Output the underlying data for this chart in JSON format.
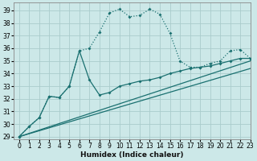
{
  "xlabel": "Humidex (Indice chaleur)",
  "bg_color": "#cce8e8",
  "grid_color": "#aacccc",
  "line_color": "#1a7070",
  "xlim": [
    -0.5,
    23
  ],
  "ylim": [
    28.8,
    39.6
  ],
  "yticks": [
    29,
    30,
    31,
    32,
    33,
    34,
    35,
    36,
    37,
    38,
    39
  ],
  "xticks": [
    0,
    1,
    2,
    3,
    4,
    5,
    6,
    7,
    8,
    9,
    10,
    11,
    12,
    13,
    14,
    15,
    16,
    17,
    18,
    19,
    20,
    21,
    22,
    23
  ],
  "series1_x": [
    0,
    1,
    2,
    3,
    4,
    5,
    6,
    7,
    8,
    9,
    10,
    11,
    12,
    13,
    14,
    15,
    16,
    17,
    18,
    19,
    20,
    21,
    22,
    23
  ],
  "series1_y": [
    29,
    29.8,
    30.5,
    32.2,
    32.1,
    33.0,
    35.8,
    36.0,
    37.3,
    38.8,
    39.1,
    38.5,
    38.6,
    39.1,
    38.7,
    37.2,
    35.0,
    34.5,
    34.5,
    34.8,
    35.0,
    35.8,
    35.9,
    35.2
  ],
  "series2_x": [
    0,
    1,
    2,
    3,
    4,
    5,
    6,
    7,
    8,
    9,
    10,
    11,
    12,
    13,
    14,
    15,
    16,
    17,
    18,
    19,
    20,
    21,
    22,
    23
  ],
  "series2_y": [
    29,
    29.8,
    30.5,
    32.2,
    32.1,
    33.0,
    35.8,
    33.5,
    32.3,
    32.5,
    33.0,
    33.2,
    33.4,
    33.5,
    33.7,
    34.0,
    34.2,
    34.4,
    34.5,
    34.6,
    34.8,
    35.0,
    35.2,
    35.2
  ],
  "line3_x": [
    0,
    23
  ],
  "line3_y": [
    29,
    35.0
  ],
  "line4_x": [
    0,
    23
  ],
  "line4_y": [
    29,
    34.4
  ]
}
